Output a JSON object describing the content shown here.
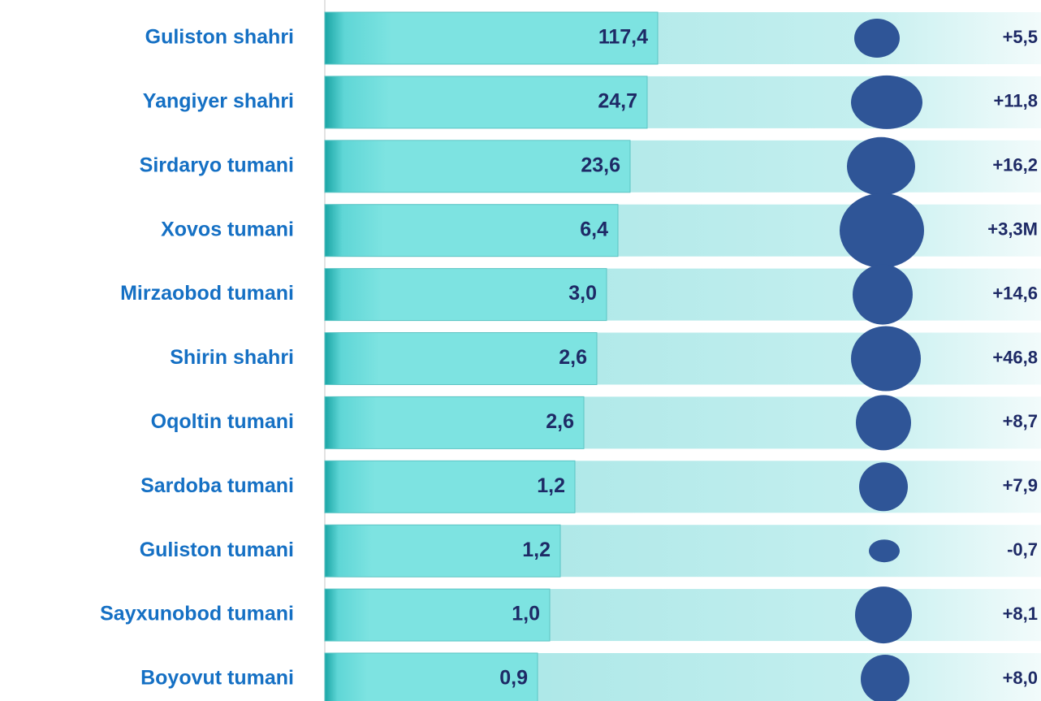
{
  "rows": [
    {
      "name": "Guliston shahri",
      "value": "117,4",
      "change": "+5,5"
    },
    {
      "name": "Yangiyer shahri",
      "value": "24,7",
      "change": "+11,8"
    },
    {
      "name": "Sirdaryo tumani",
      "value": "23,6",
      "change": "+16,2"
    },
    {
      "name": "Xovos tumani",
      "value": "6,4",
      "change": "+3,3M"
    },
    {
      "name": "Mirzaobod tumani",
      "value": "3,0",
      "change": "+14,6"
    },
    {
      "name": "Shirin shahri",
      "value": "2,6",
      "change": "+46,8"
    },
    {
      "name": "Oqoltin tumani",
      "value": "2,6",
      "change": "+8,7"
    },
    {
      "name": "Sardoba tumani",
      "value": "1,2",
      "change": "+7,9"
    },
    {
      "name": "Guliston tumani",
      "value": "1,2",
      "change": "-0,7"
    },
    {
      "name": "Sayxunobod tumani",
      "value": "1,0",
      "change": "+8,1"
    },
    {
      "name": "Boyovut tumani",
      "value": "0,9",
      "change": "+8,0"
    }
  ]
}
